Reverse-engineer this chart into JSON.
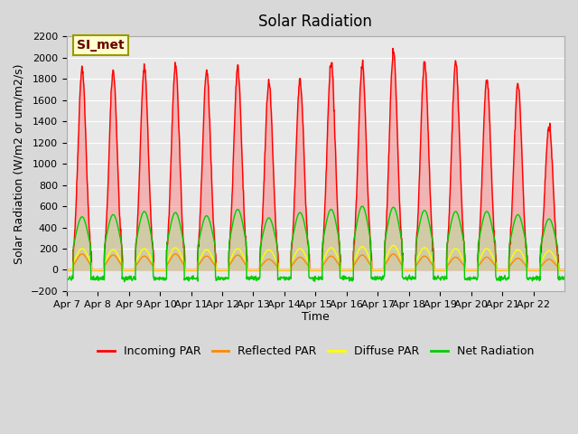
{
  "title": "Solar Radiation",
  "ylabel": "Solar Radiation (W/m2 or um/m2/s)",
  "xlabel": "Time",
  "ylim": [
    -200,
    2200
  ],
  "yticks": [
    -200,
    0,
    200,
    400,
    600,
    800,
    1000,
    1200,
    1400,
    1600,
    1800,
    2000,
    2200
  ],
  "x_tick_labels": [
    "Apr 7",
    "Apr 8",
    "Apr 9",
    "Apr 10",
    "Apr 11",
    "Apr 12",
    "Apr 13",
    "Apr 14",
    "Apr 15",
    "Apr 16",
    "Apr 17",
    "Apr 18",
    "Apr 19",
    "Apr 20",
    "Apr 21",
    "Apr 22"
  ],
  "annotation_text": "SI_met",
  "annotation_bg": "#ffffcc",
  "annotation_border": "#999900",
  "colors": {
    "incoming_par": "#ff0000",
    "reflected_par": "#ff8800",
    "diffuse_par": "#ffff00",
    "net_radiation": "#00cc00"
  },
  "legend_labels": [
    "Incoming PAR",
    "Reflected PAR",
    "Diffuse PAR",
    "Net Radiation"
  ],
  "fig_bg_color": "#d8d8d8",
  "plot_bg_color": "#e8e8e8",
  "grid_color": "#ffffff",
  "n_days": 16,
  "steps_per_day": 96,
  "day_peak_incoming": [
    1900,
    1870,
    1900,
    1930,
    1870,
    1900,
    1760,
    1770,
    1960,
    1940,
    2060,
    1960,
    1950,
    1800,
    1750,
    1360
  ],
  "day_peak_net": [
    500,
    520,
    550,
    540,
    510,
    570,
    490,
    540,
    570,
    600,
    590,
    560,
    550,
    550,
    520,
    480
  ],
  "day_peak_reflected": [
    150,
    140,
    130,
    150,
    130,
    140,
    100,
    120,
    130,
    140,
    150,
    130,
    120,
    120,
    110,
    100
  ],
  "day_peak_diffuse": [
    200,
    190,
    200,
    210,
    190,
    200,
    190,
    200,
    210,
    220,
    230,
    210,
    200,
    200,
    190,
    180
  ],
  "line_width": 1.0
}
